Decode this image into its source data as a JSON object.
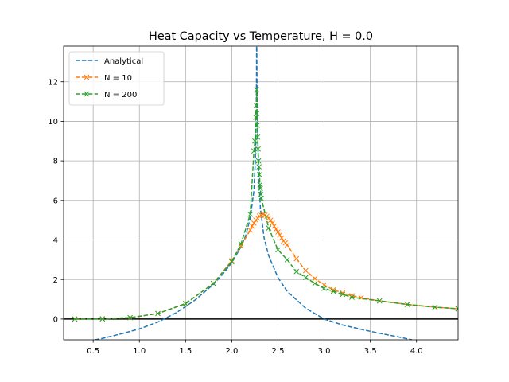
{
  "chart_data": {
    "type": "line",
    "title": "Heat Capacity vs Temperature, H = 0.0",
    "xlabel": "",
    "ylabel": "",
    "xlim": [
      0.18,
      4.45
    ],
    "ylim": [
      -1.05,
      13.8
    ],
    "xticks": [
      0.5,
      1.0,
      1.5,
      2.0,
      2.5,
      3.0,
      3.5,
      4.0
    ],
    "xtick_labels": [
      "0.5",
      "1.0",
      "1.5",
      "2.0",
      "2.5",
      "3.0",
      "3.5",
      "4.0"
    ],
    "yticks": [
      0,
      2,
      4,
      6,
      8,
      10,
      12
    ],
    "ytick_labels": [
      "0",
      "2",
      "4",
      "6",
      "8",
      "10",
      "12"
    ],
    "grid": true,
    "legend_position": "top-left",
    "hline_y": 0,
    "series": [
      {
        "name": "Analytical",
        "color": "#1f77b4",
        "style": "dashed",
        "marker": "none",
        "points": [
          [
            0.52,
            -1.05
          ],
          [
            0.6,
            -0.98
          ],
          [
            0.8,
            -0.75
          ],
          [
            1.0,
            -0.5
          ],
          [
            1.2,
            -0.15
          ],
          [
            1.4,
            0.32
          ],
          [
            1.6,
            0.95
          ],
          [
            1.8,
            1.75
          ],
          [
            1.9,
            2.25
          ],
          [
            2.0,
            2.85
          ],
          [
            2.1,
            3.65
          ],
          [
            2.15,
            4.2
          ],
          [
            2.2,
            5.1
          ],
          [
            2.24,
            6.5
          ],
          [
            2.255,
            8.0
          ],
          [
            2.262,
            9.5
          ],
          [
            2.266,
            11.0
          ],
          [
            2.268,
            12.5
          ],
          [
            2.2688,
            13.8
          ],
          [
            2.2706,
            13.8
          ],
          [
            2.273,
            12.0
          ],
          [
            2.28,
            9.5
          ],
          [
            2.29,
            7.5
          ],
          [
            2.31,
            5.6
          ],
          [
            2.35,
            4.1
          ],
          [
            2.4,
            3.2
          ],
          [
            2.5,
            2.1
          ],
          [
            2.6,
            1.4
          ],
          [
            2.8,
            0.55
          ],
          [
            3.0,
            0.0
          ],
          [
            3.2,
            -0.3
          ],
          [
            3.4,
            -0.52
          ],
          [
            3.6,
            -0.72
          ],
          [
            3.8,
            -0.9
          ],
          [
            3.95,
            -1.05
          ]
        ]
      },
      {
        "name": "N = 10",
        "color": "#ff7f0e",
        "style": "dashed",
        "marker": "x",
        "points": [
          [
            0.3,
            0.0
          ],
          [
            0.6,
            0.01
          ],
          [
            0.9,
            0.07
          ],
          [
            1.2,
            0.28
          ],
          [
            1.5,
            0.78
          ],
          [
            1.8,
            1.8
          ],
          [
            2.0,
            2.95
          ],
          [
            2.1,
            3.7
          ],
          [
            2.2,
            4.5
          ],
          [
            2.22,
            4.7
          ],
          [
            2.24,
            4.85
          ],
          [
            2.26,
            5.0
          ],
          [
            2.28,
            5.1
          ],
          [
            2.3,
            5.2
          ],
          [
            2.32,
            5.25
          ],
          [
            2.34,
            5.3
          ],
          [
            2.36,
            5.25
          ],
          [
            2.38,
            5.2
          ],
          [
            2.4,
            5.1
          ],
          [
            2.42,
            5.0
          ],
          [
            2.44,
            4.85
          ],
          [
            2.46,
            4.7
          ],
          [
            2.48,
            4.55
          ],
          [
            2.5,
            4.4
          ],
          [
            2.52,
            4.25
          ],
          [
            2.54,
            4.1
          ],
          [
            2.56,
            3.95
          ],
          [
            2.58,
            3.85
          ],
          [
            2.6,
            3.75
          ],
          [
            2.7,
            3.05
          ],
          [
            2.8,
            2.45
          ],
          [
            2.9,
            2.05
          ],
          [
            3.0,
            1.72
          ],
          [
            3.1,
            1.48
          ],
          [
            3.2,
            1.32
          ],
          [
            3.3,
            1.18
          ],
          [
            3.4,
            1.08
          ],
          [
            3.6,
            0.92
          ],
          [
            3.9,
            0.74
          ],
          [
            4.2,
            0.6
          ],
          [
            4.45,
            0.52
          ]
        ]
      },
      {
        "name": "N = 200",
        "color": "#2ca02c",
        "style": "dashed",
        "marker": "x",
        "points": [
          [
            0.3,
            0.0
          ],
          [
            0.6,
            0.01
          ],
          [
            0.9,
            0.07
          ],
          [
            1.2,
            0.28
          ],
          [
            1.5,
            0.78
          ],
          [
            1.8,
            1.8
          ],
          [
            2.0,
            2.9
          ],
          [
            2.1,
            3.8
          ],
          [
            2.2,
            5.3
          ],
          [
            2.24,
            8.5
          ],
          [
            2.25,
            9.0
          ],
          [
            2.26,
            10.2
          ],
          [
            2.265,
            10.8
          ],
          [
            2.27,
            11.6
          ],
          [
            2.273,
            10.4
          ],
          [
            2.276,
            9.8
          ],
          [
            2.28,
            9.2
          ],
          [
            2.285,
            8.6
          ],
          [
            2.29,
            8.0
          ],
          [
            2.295,
            7.7
          ],
          [
            2.3,
            7.3
          ],
          [
            2.305,
            6.8
          ],
          [
            2.31,
            6.6
          ],
          [
            2.315,
            6.3
          ],
          [
            2.32,
            6.1
          ],
          [
            2.4,
            4.6
          ],
          [
            2.5,
            3.5
          ],
          [
            2.6,
            3.0
          ],
          [
            2.7,
            2.4
          ],
          [
            2.8,
            2.1
          ],
          [
            2.9,
            1.8
          ],
          [
            3.0,
            1.55
          ],
          [
            3.1,
            1.4
          ],
          [
            3.2,
            1.25
          ],
          [
            3.3,
            1.1
          ],
          [
            3.6,
            0.92
          ],
          [
            3.9,
            0.74
          ],
          [
            4.2,
            0.6
          ],
          [
            4.45,
            0.52
          ]
        ]
      }
    ]
  }
}
